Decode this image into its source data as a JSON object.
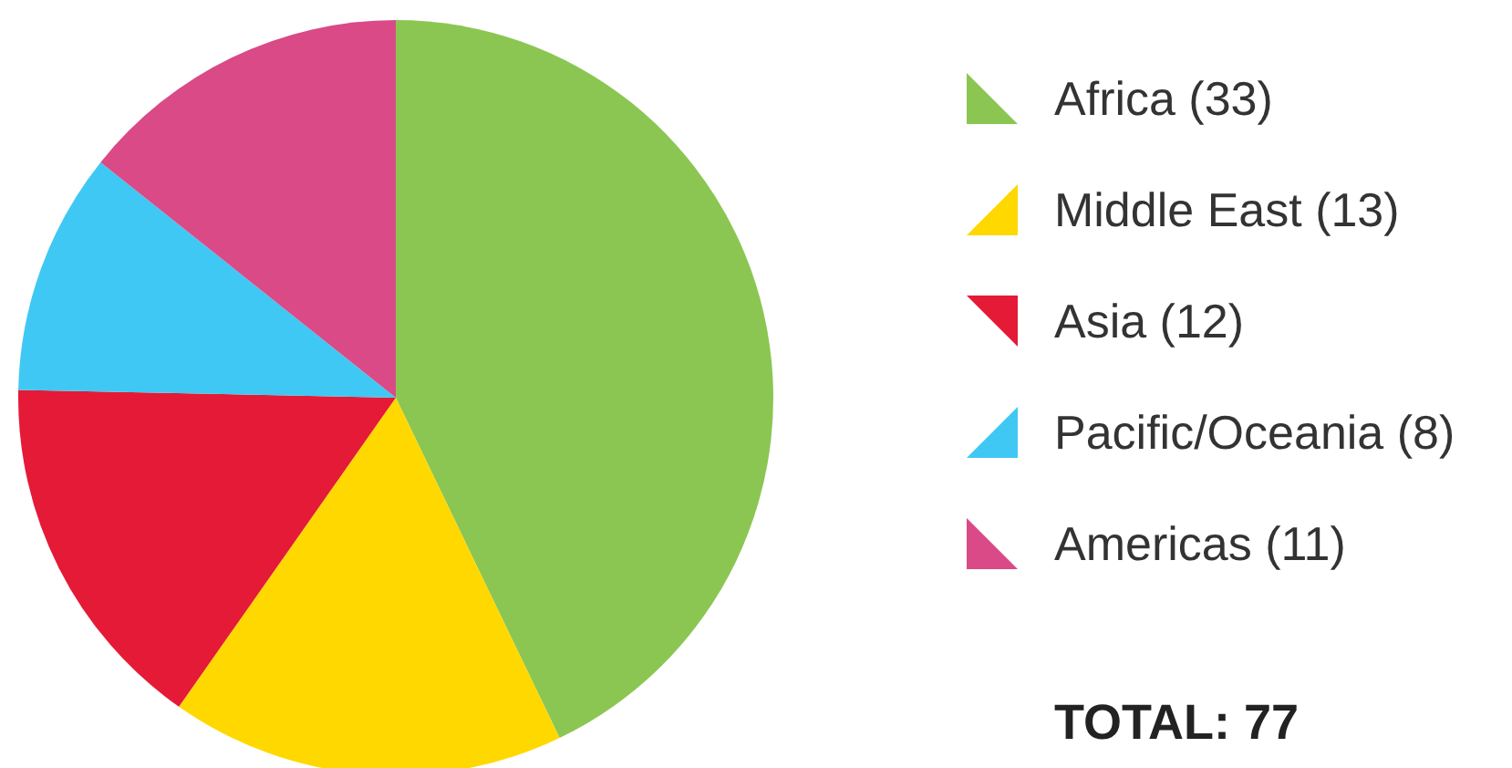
{
  "chart_data": {
    "type": "pie",
    "categories": [
      "Africa (33)",
      "Middle East (13)",
      "Asia (12)",
      "Pacific/Oceania (8)",
      "Americas (11)"
    ],
    "values": [
      33,
      13,
      12,
      8,
      11
    ],
    "colors": [
      "#8bc653",
      "#ffd800",
      "#e41a37",
      "#40c8f4",
      "#d94a86"
    ],
    "legend": "right",
    "annotations": [
      "TOTAL: 77"
    ]
  }
}
